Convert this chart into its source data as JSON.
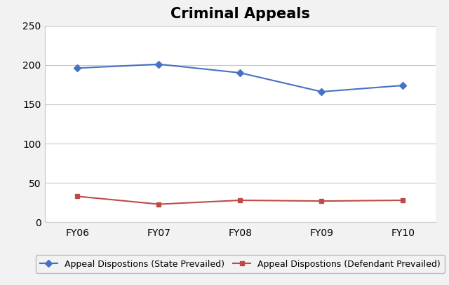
{
  "title": "Criminal Appeals",
  "categories": [
    "FY06",
    "FY07",
    "FY08",
    "FY09",
    "FY10"
  ],
  "state_prevailed": [
    196,
    201,
    190,
    166,
    174
  ],
  "defendant_prevailed": [
    33,
    23,
    28,
    27,
    28
  ],
  "state_color": "#4472C4",
  "defendant_color": "#BE4B48",
  "state_label": "Appeal Dispostions (State Prevailed)",
  "defendant_label": "Appeal Dispostions (Defendant Prevailed)",
  "ylim": [
    0,
    250
  ],
  "yticks": [
    0,
    50,
    100,
    150,
    200,
    250
  ],
  "title_fontsize": 15,
  "legend_fontsize": 9,
  "tick_fontsize": 10,
  "background_color": "#f2f2f2",
  "plot_bg_color": "#ffffff",
  "grid_color": "#c8c8c8"
}
